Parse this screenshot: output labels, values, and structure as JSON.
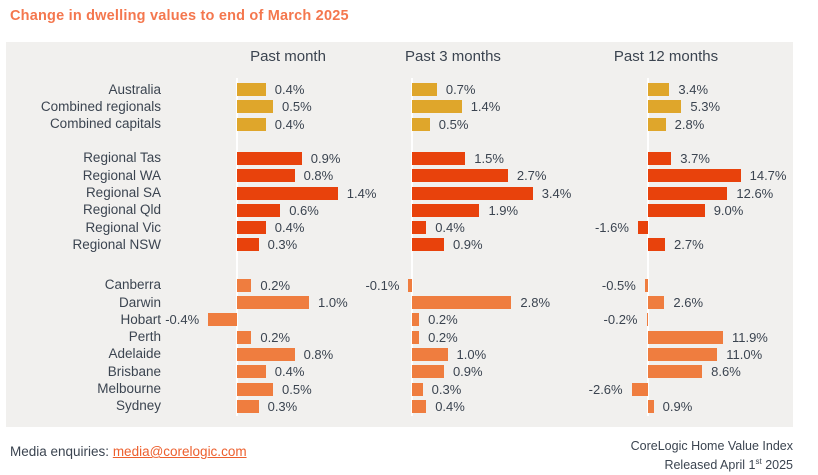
{
  "title": "Change in dwelling values to end of March 2025",
  "colors": {
    "title_orange": "#F4774E",
    "link_orange": "#ED5F2D",
    "text_navy": "#3B4450",
    "chart_background": "#F1F0EE",
    "national_gold": "#DFA62B",
    "regional_red": "#E8420C",
    "capital_orange": "#EF7D3F"
  },
  "chart_data": {
    "type": "bar",
    "orientation": "horizontal",
    "title": "Change in dwelling values to end of March 2025",
    "value_suffix": "%",
    "gridlines": false,
    "legend": "none",
    "categories": [
      "Australia",
      "Combined regionals",
      "Combined capitals",
      "Regional Tas",
      "Regional WA",
      "Regional SA",
      "Regional Qld",
      "Regional Vic",
      "Regional NSW",
      "Canberra",
      "Darwin",
      "Hobart",
      "Perth",
      "Adelaide",
      "Brisbane",
      "Melbourne",
      "Sydney"
    ],
    "series": [
      {
        "name": "Past month",
        "values": [
          0.4,
          0.5,
          0.4,
          0.9,
          0.8,
          1.4,
          0.6,
          0.4,
          0.3,
          0.2,
          1.0,
          -0.4,
          0.2,
          0.8,
          0.4,
          0.5,
          0.3
        ]
      },
      {
        "name": "Past 3 months",
        "values": [
          0.7,
          1.4,
          0.5,
          1.5,
          2.7,
          3.4,
          1.9,
          0.4,
          0.9,
          -0.1,
          2.8,
          0.2,
          0.2,
          1.0,
          0.9,
          0.3,
          0.4
        ]
      },
      {
        "name": "Past 12 months",
        "values": [
          3.4,
          5.3,
          2.8,
          3.7,
          14.7,
          12.6,
          9.0,
          -1.6,
          2.7,
          -0.5,
          2.6,
          -0.2,
          11.9,
          11.0,
          8.6,
          -2.6,
          0.9
        ]
      }
    ],
    "groups": [
      {
        "name": "national",
        "rows": [
          0,
          2
        ],
        "color": "#DFA62B"
      },
      {
        "name": "regionals",
        "rows": [
          3,
          8
        ],
        "color": "#E8420C"
      },
      {
        "name": "capitals",
        "rows": [
          9,
          16
        ],
        "color": "#EF7D3F"
      }
    ]
  },
  "footer": {
    "media_label": "Media enquiries: ",
    "media_link": "media@corelogic.com",
    "source_line1": "CoreLogic Home Value Index",
    "released_prefix": "Released April 1",
    "released_sup": "st",
    "released_suffix": " 2025"
  }
}
